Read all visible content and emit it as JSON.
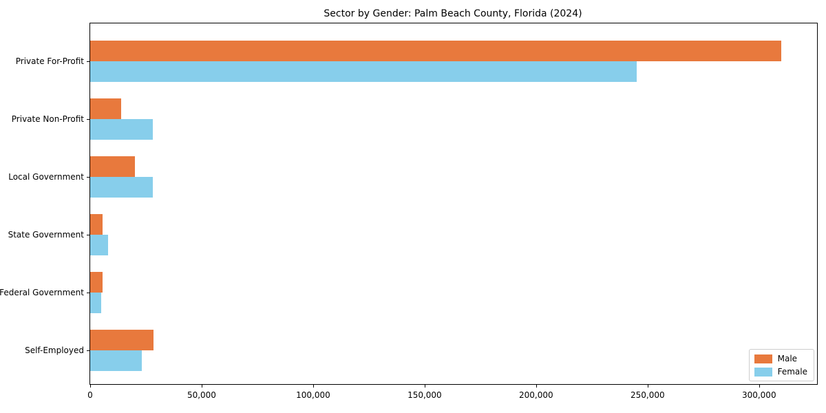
{
  "chart_data": {
    "type": "bar",
    "orientation": "horizontal",
    "title": "Sector by Gender: Palm Beach County, Florida (2024)",
    "categories": [
      "Private For-Profit",
      "Private Non-Profit",
      "Local Government",
      "State Government",
      "Federal Government",
      "Self-Employed"
    ],
    "series": [
      {
        "name": "Male",
        "color": "#e8793d",
        "values": [
          310000,
          14000,
          20000,
          5700,
          5700,
          28500
        ]
      },
      {
        "name": "Female",
        "color": "#87ceeb",
        "values": [
          245000,
          28000,
          28200,
          8000,
          5000,
          23000
        ]
      }
    ],
    "xlabel": "",
    "ylabel": "",
    "xlim": [
      0,
      326000
    ],
    "xticks": [
      0,
      50000,
      100000,
      150000,
      200000,
      250000,
      300000
    ],
    "xtick_labels": [
      "0",
      "50,000",
      "100,000",
      "150,000",
      "200,000",
      "250,000",
      "300,000"
    ],
    "grid": false,
    "legend": {
      "position": "lower-right",
      "entries": [
        "Male",
        "Female"
      ]
    },
    "colors": {
      "axis": "#000000",
      "legend_border": "#cccccc",
      "background": "#ffffff"
    }
  }
}
